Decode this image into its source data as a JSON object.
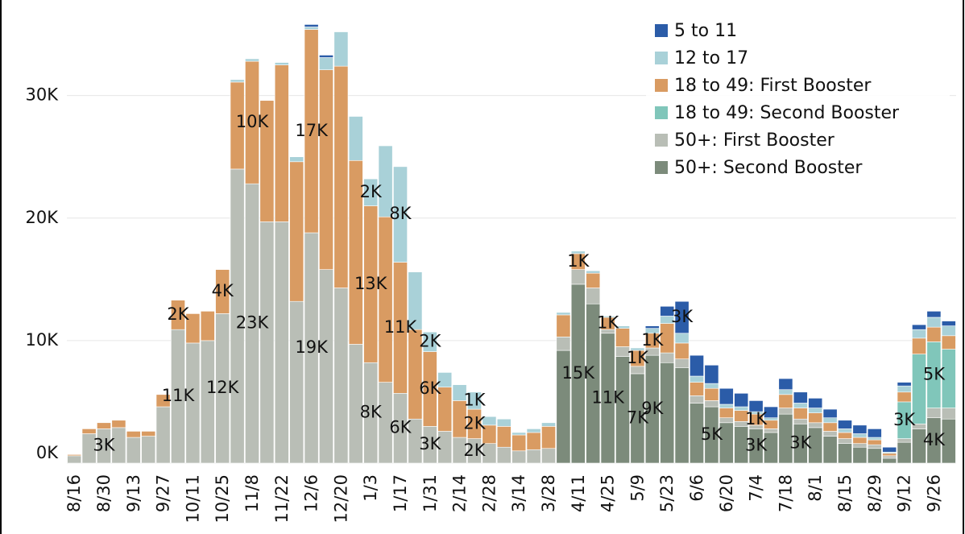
{
  "chart_data": {
    "type": "stacked_bar",
    "categories": [
      "8/16",
      null,
      "8/30",
      null,
      "9/13",
      null,
      "9/27",
      null,
      "10/11",
      null,
      "10/25",
      null,
      "11/8",
      null,
      "11/22",
      null,
      "12/6",
      null,
      "12/20",
      null,
      "1/3",
      null,
      "1/17",
      null,
      "1/31",
      null,
      "2/14",
      null,
      "2/28",
      null,
      "3/14",
      null,
      "3/28",
      null,
      "4/11",
      null,
      "4/25",
      null,
      "5/9",
      null,
      "5/23",
      null,
      "6/6",
      null,
      "6/20",
      null,
      "7/4",
      null,
      "7/18",
      null,
      "8/1",
      null,
      "8/15",
      null,
      "8/29",
      null,
      "9/12",
      null,
      "9/26",
      null
    ],
    "series": [
      {
        "name": "5 to 11",
        "color": "#2b5ca8",
        "values": [
          0,
          0,
          0,
          0,
          0,
          0,
          0,
          0,
          0,
          0,
          0,
          0,
          0,
          0,
          0,
          0,
          200,
          200,
          0,
          0,
          0,
          0,
          0,
          0,
          0,
          0,
          0,
          0,
          0,
          0,
          0,
          0,
          0,
          0,
          0,
          0,
          0,
          0,
          0,
          200,
          800,
          2600,
          1700,
          1500,
          1300,
          1100,
          900,
          900,
          900,
          900,
          800,
          700,
          700,
          700,
          700,
          400,
          300,
          400,
          500,
          400
        ],
        "value_labels": [
          null,
          null,
          null,
          null,
          null,
          null,
          null,
          null,
          null,
          null,
          null,
          null,
          null,
          null,
          null,
          null,
          null,
          null,
          null,
          null,
          null,
          null,
          null,
          null,
          null,
          null,
          null,
          null,
          null,
          null,
          null,
          null,
          null,
          null,
          null,
          null,
          null,
          null,
          null,
          null,
          null,
          "3K",
          null,
          null,
          null,
          null,
          null,
          null,
          null,
          null,
          null,
          null,
          null,
          null,
          null,
          null,
          null,
          null,
          null,
          null
        ]
      },
      {
        "name": "12 to 17",
        "color": "#a9d1d8",
        "values": [
          0,
          0,
          0,
          0,
          0,
          0,
          0,
          0,
          0,
          0,
          0,
          200,
          200,
          0,
          200,
          400,
          200,
          1000,
          2800,
          3600,
          2200,
          5800,
          7800,
          4700,
          1600,
          1200,
          1300,
          1400,
          700,
          600,
          200,
          300,
          300,
          200,
          200,
          200,
          100,
          200,
          200,
          400,
          600,
          800,
          500,
          400,
          300,
          300,
          200,
          200,
          400,
          400,
          400,
          400,
          300,
          300,
          200,
          100,
          500,
          700,
          800,
          800
        ],
        "value_labels": [
          null,
          null,
          null,
          null,
          null,
          null,
          null,
          null,
          null,
          null,
          null,
          null,
          null,
          null,
          null,
          null,
          null,
          null,
          null,
          null,
          "2K",
          null,
          "8K",
          null,
          "2K",
          null,
          null,
          "1K",
          null,
          null,
          null,
          null,
          null,
          null,
          null,
          null,
          null,
          null,
          null,
          null,
          null,
          null,
          null,
          null,
          null,
          null,
          null,
          null,
          null,
          null,
          null,
          null,
          null,
          null,
          null,
          null,
          null,
          null,
          null,
          null
        ]
      },
      {
        "name": "18 to 49: First Booster",
        "color": "#d99b62",
        "values": [
          100,
          400,
          500,
          600,
          500,
          400,
          1000,
          2400,
          2400,
          2400,
          3600,
          7100,
          10000,
          9900,
          12800,
          11400,
          16600,
          16300,
          18100,
          15000,
          12800,
          13500,
          10700,
          7300,
          6100,
          3600,
          3000,
          2400,
          1500,
          1700,
          1300,
          1400,
          1800,
          1800,
          1300,
          1200,
          1000,
          1500,
          1300,
          1200,
          2400,
          1300,
          1100,
          1000,
          800,
          900,
          900,
          700,
          1100,
          900,
          800,
          700,
          500,
          500,
          400,
          200,
          800,
          1300,
          1200,
          1100
        ],
        "value_labels": [
          null,
          null,
          null,
          null,
          null,
          null,
          null,
          "2K",
          null,
          null,
          "4K",
          null,
          "10K",
          null,
          null,
          null,
          "17K",
          null,
          null,
          null,
          "13K",
          null,
          "11K",
          null,
          "6K",
          null,
          null,
          "2K",
          null,
          null,
          null,
          null,
          null,
          null,
          "1K",
          null,
          "1K",
          null,
          "1K",
          "1K",
          null,
          null,
          null,
          null,
          null,
          null,
          "1K",
          null,
          null,
          null,
          null,
          null,
          null,
          null,
          null,
          null,
          null,
          null,
          null,
          null
        ]
      },
      {
        "name": "18 to 49: Second Booster",
        "color": "#80c6ba",
        "values": [
          0,
          0,
          0,
          0,
          0,
          0,
          0,
          0,
          0,
          0,
          0,
          0,
          0,
          0,
          0,
          0,
          0,
          0,
          0,
          0,
          0,
          0,
          0,
          0,
          0,
          0,
          0,
          0,
          0,
          0,
          0,
          0,
          0,
          0,
          0,
          0,
          0,
          0,
          0,
          0,
          0,
          0,
          0,
          0,
          0,
          0,
          0,
          0,
          0,
          0,
          0,
          0,
          0,
          0,
          0,
          0,
          3000,
          5700,
          5400,
          4800
        ],
        "value_labels": [
          null,
          null,
          null,
          null,
          null,
          null,
          null,
          null,
          null,
          null,
          null,
          null,
          null,
          null,
          null,
          null,
          null,
          null,
          null,
          null,
          null,
          null,
          null,
          null,
          null,
          null,
          null,
          null,
          null,
          null,
          null,
          null,
          null,
          null,
          null,
          null,
          null,
          null,
          null,
          null,
          null,
          null,
          null,
          null,
          null,
          null,
          null,
          null,
          null,
          null,
          null,
          null,
          null,
          null,
          null,
          null,
          "3K",
          null,
          "5K",
          null
        ]
      },
      {
        "name": "50+: First Booster",
        "color": "#b9beb6",
        "values": [
          600,
          2400,
          2800,
          2900,
          2100,
          2200,
          4600,
          10900,
          9800,
          10000,
          12200,
          24000,
          22800,
          19700,
          19700,
          13200,
          18800,
          15800,
          14300,
          9700,
          8200,
          6600,
          5700,
          3600,
          3000,
          2600,
          2100,
          2000,
          1600,
          1300,
          1000,
          1100,
          1200,
          1100,
          1200,
          1300,
          300,
          800,
          600,
          600,
          800,
          700,
          600,
          500,
          400,
          400,
          300,
          300,
          500,
          400,
          400,
          400,
          400,
          300,
          300,
          200,
          300,
          400,
          800,
          900
        ],
        "value_labels": [
          null,
          null,
          "3K",
          null,
          null,
          null,
          null,
          "11K",
          null,
          null,
          "12K",
          null,
          "23K",
          null,
          null,
          null,
          "19K",
          null,
          null,
          null,
          "8K",
          null,
          "6K",
          null,
          "3K",
          null,
          null,
          "2K",
          null,
          null,
          null,
          null,
          null,
          null,
          null,
          null,
          null,
          null,
          null,
          null,
          null,
          null,
          null,
          null,
          null,
          null,
          null,
          null,
          null,
          null,
          null,
          null,
          null,
          null,
          null,
          null,
          null,
          null,
          null,
          null
        ]
      },
      {
        "name": "50+: Second Booster",
        "color": "#7c8b7b",
        "values": [
          0,
          0,
          0,
          0,
          0,
          0,
          0,
          0,
          0,
          0,
          0,
          0,
          0,
          0,
          0,
          0,
          0,
          0,
          0,
          0,
          0,
          0,
          0,
          0,
          0,
          0,
          0,
          0,
          0,
          0,
          0,
          0,
          0,
          9200,
          14600,
          13000,
          10600,
          8700,
          7300,
          8800,
          8200,
          7800,
          4900,
          4600,
          3300,
          3000,
          2800,
          2500,
          4000,
          3200,
          2900,
          2200,
          1600,
          1300,
          1200,
          400,
          1700,
          2800,
          3700,
          3600
        ],
        "value_labels": [
          null,
          null,
          null,
          null,
          null,
          null,
          null,
          null,
          null,
          null,
          null,
          null,
          null,
          null,
          null,
          null,
          null,
          null,
          null,
          null,
          null,
          null,
          null,
          null,
          null,
          null,
          null,
          null,
          null,
          null,
          null,
          null,
          null,
          null,
          "15K",
          null,
          "11K",
          null,
          "7K",
          "9K",
          null,
          null,
          null,
          "5K",
          null,
          null,
          "3K",
          null,
          null,
          "3K",
          null,
          null,
          null,
          null,
          null,
          null,
          null,
          null,
          "4K",
          null
        ]
      }
    ],
    "ylim": [
      0,
      37800
    ],
    "yticks": [
      {
        "value": 0,
        "label": "0K"
      },
      {
        "value": 10000,
        "label": "10K"
      },
      {
        "value": 20000,
        "label": "20K"
      },
      {
        "value": 30000,
        "label": "30K"
      }
    ],
    "grid": true,
    "legend": "upper right"
  }
}
